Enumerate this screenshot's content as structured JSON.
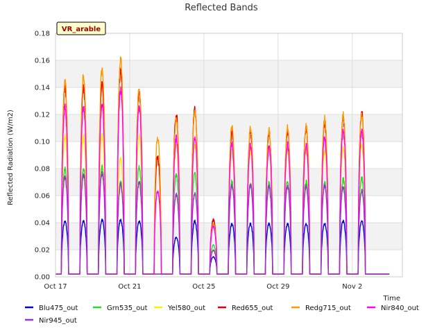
{
  "chart_data": {
    "type": "line",
    "title": "Reflected Bands",
    "xlabel": "Time",
    "ylabel": "Reflected Radiation (W/m2)",
    "annotation": "VR_arable",
    "ylim": [
      0,
      0.18
    ],
    "yticks": [
      "0.00",
      "0.02",
      "0.04",
      "0.06",
      "0.08",
      "0.10",
      "0.12",
      "0.14",
      "0.16",
      "0.18"
    ],
    "xlim_days": [
      0,
      18.7
    ],
    "xticks": [
      {
        "label": "Oct 17",
        "day": 0
      },
      {
        "label": "Oct 21",
        "day": 4
      },
      {
        "label": "Oct 25",
        "day": 8
      },
      {
        "label": "Oct 29",
        "day": 12
      },
      {
        "label": "Nov 2",
        "day": 16
      }
    ],
    "grid": true,
    "legend_position": "bottom",
    "days": [
      "Oct 17",
      "Oct 18",
      "Oct 19",
      "Oct 20",
      "Oct 21",
      "Oct 22",
      "Oct 23",
      "Oct 24",
      "Oct 25",
      "Oct 26",
      "Oct 27",
      "Oct 28",
      "Oct 29",
      "Oct 30",
      "Oct 31",
      "Nov 1",
      "Nov 2",
      "Nov 3"
    ],
    "series": [
      {
        "name": "Blu475_out",
        "color": "#0000dd",
        "values": [
          0.042,
          0.042,
          0.043,
          0.043,
          0.042,
          0.0,
          0.03,
          0.042,
          0.015,
          0.04,
          0.04,
          0.04,
          0.04,
          0.04,
          0.04,
          0.042,
          0.042,
          0.0
        ]
      },
      {
        "name": "Grn535_out",
        "color": "#22dd22",
        "values": [
          0.082,
          0.082,
          0.083,
          0.072,
          0.083,
          0.0,
          0.077,
          0.078,
          0.024,
          0.072,
          0.071,
          0.071,
          0.072,
          0.072,
          0.071,
          0.074,
          0.075,
          0.0
        ]
      },
      {
        "name": "Yel580_out",
        "color": "#ffee00",
        "values": [
          0.106,
          0.106,
          0.107,
          0.09,
          0.106,
          0.0,
          0.1,
          0.1,
          0.02,
          0.095,
          0.095,
          0.095,
          0.095,
          0.095,
          0.095,
          0.098,
          0.1,
          0.0
        ]
      },
      {
        "name": "Red655_out",
        "color": "#dd0000",
        "values": [
          0.143,
          0.143,
          0.145,
          0.157,
          0.14,
          0.09,
          0.123,
          0.127,
          0.043,
          0.11,
          0.11,
          0.109,
          0.11,
          0.112,
          0.117,
          0.12,
          0.124,
          0.0
        ]
      },
      {
        "name": "Redg715_out",
        "color": "#ff9900",
        "values": [
          0.147,
          0.152,
          0.157,
          0.165,
          0.143,
          0.105,
          0.12,
          0.125,
          0.04,
          0.113,
          0.112,
          0.111,
          0.113,
          0.114,
          0.12,
          0.123,
          0.123,
          0.0
        ]
      },
      {
        "name": "Nir840_out",
        "color": "#ff00ff",
        "values": [
          0.128,
          0.129,
          0.13,
          0.142,
          0.128,
          0.065,
          0.105,
          0.105,
          0.038,
          0.1,
          0.099,
          0.098,
          0.1,
          0.1,
          0.105,
          0.11,
          0.11,
          0.0
        ]
      },
      {
        "name": "Nir945_out",
        "color": "#9933cc",
        "values": [
          0.076,
          0.077,
          0.078,
          0.07,
          0.072,
          0.0,
          0.062,
          0.063,
          0.02,
          0.069,
          0.069,
          0.068,
          0.069,
          0.068,
          0.069,
          0.068,
          0.065,
          0.0
        ]
      }
    ]
  }
}
